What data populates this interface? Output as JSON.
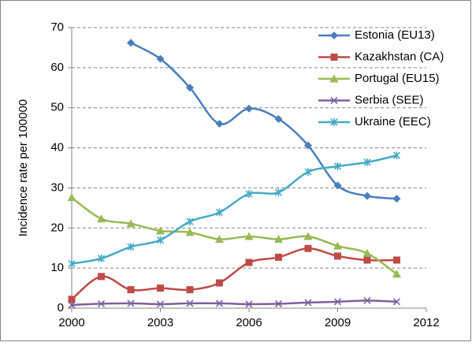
{
  "chart_data": {
    "type": "line",
    "y_label": "Incidence rate per 100000",
    "x": [
      2000,
      2001,
      2002,
      2003,
      2004,
      2005,
      2006,
      2007,
      2008,
      2009,
      2010,
      2011
    ],
    "series": [
      {
        "name": "Estonia (EU13)",
        "color": "#4a7ebb",
        "marker": "diamond",
        "values": [
          null,
          null,
          66.2,
          62.2,
          55,
          46,
          49.8,
          47.2,
          40.6,
          30.6,
          28,
          27.3
        ]
      },
      {
        "name": "Kazakhstan (CA)",
        "color": "#be4b48",
        "marker": "square",
        "values": [
          2.2,
          7.9,
          4.6,
          5,
          4.6,
          6.3,
          11.4,
          12.7,
          14.9,
          13,
          12,
          12
        ]
      },
      {
        "name": "Portugal (EU15)",
        "color": "#98b954",
        "marker": "triangle",
        "values": [
          27.6,
          22.3,
          21.1,
          19.3,
          18.9,
          17.2,
          17.9,
          17.2,
          17.9,
          15.5,
          13.7,
          8.5
        ]
      },
      {
        "name": "Serbia (SEE)",
        "color": "#7d60a0",
        "marker": "x",
        "values": [
          0.8,
          1.1,
          1.2,
          1.0,
          1.2,
          1.2,
          1.0,
          1.1,
          1.4,
          1.6,
          1.9,
          1.6
        ]
      },
      {
        "name": "Ukraine (EEC)",
        "color": "#46aac5",
        "marker": "star",
        "values": [
          11.1,
          12.4,
          15.3,
          17,
          21.6,
          23.9,
          28.5,
          28.9,
          34,
          35.4,
          36.4,
          38.1
        ]
      }
    ],
    "xlim": [
      2000,
      2012
    ],
    "xticks": [
      2000,
      2003,
      2006,
      2009,
      2012
    ],
    "ylim": [
      0,
      70
    ],
    "yticks": [
      0,
      10,
      20,
      30,
      40,
      50,
      60,
      70
    ],
    "grid": true,
    "legend": "top-right"
  }
}
